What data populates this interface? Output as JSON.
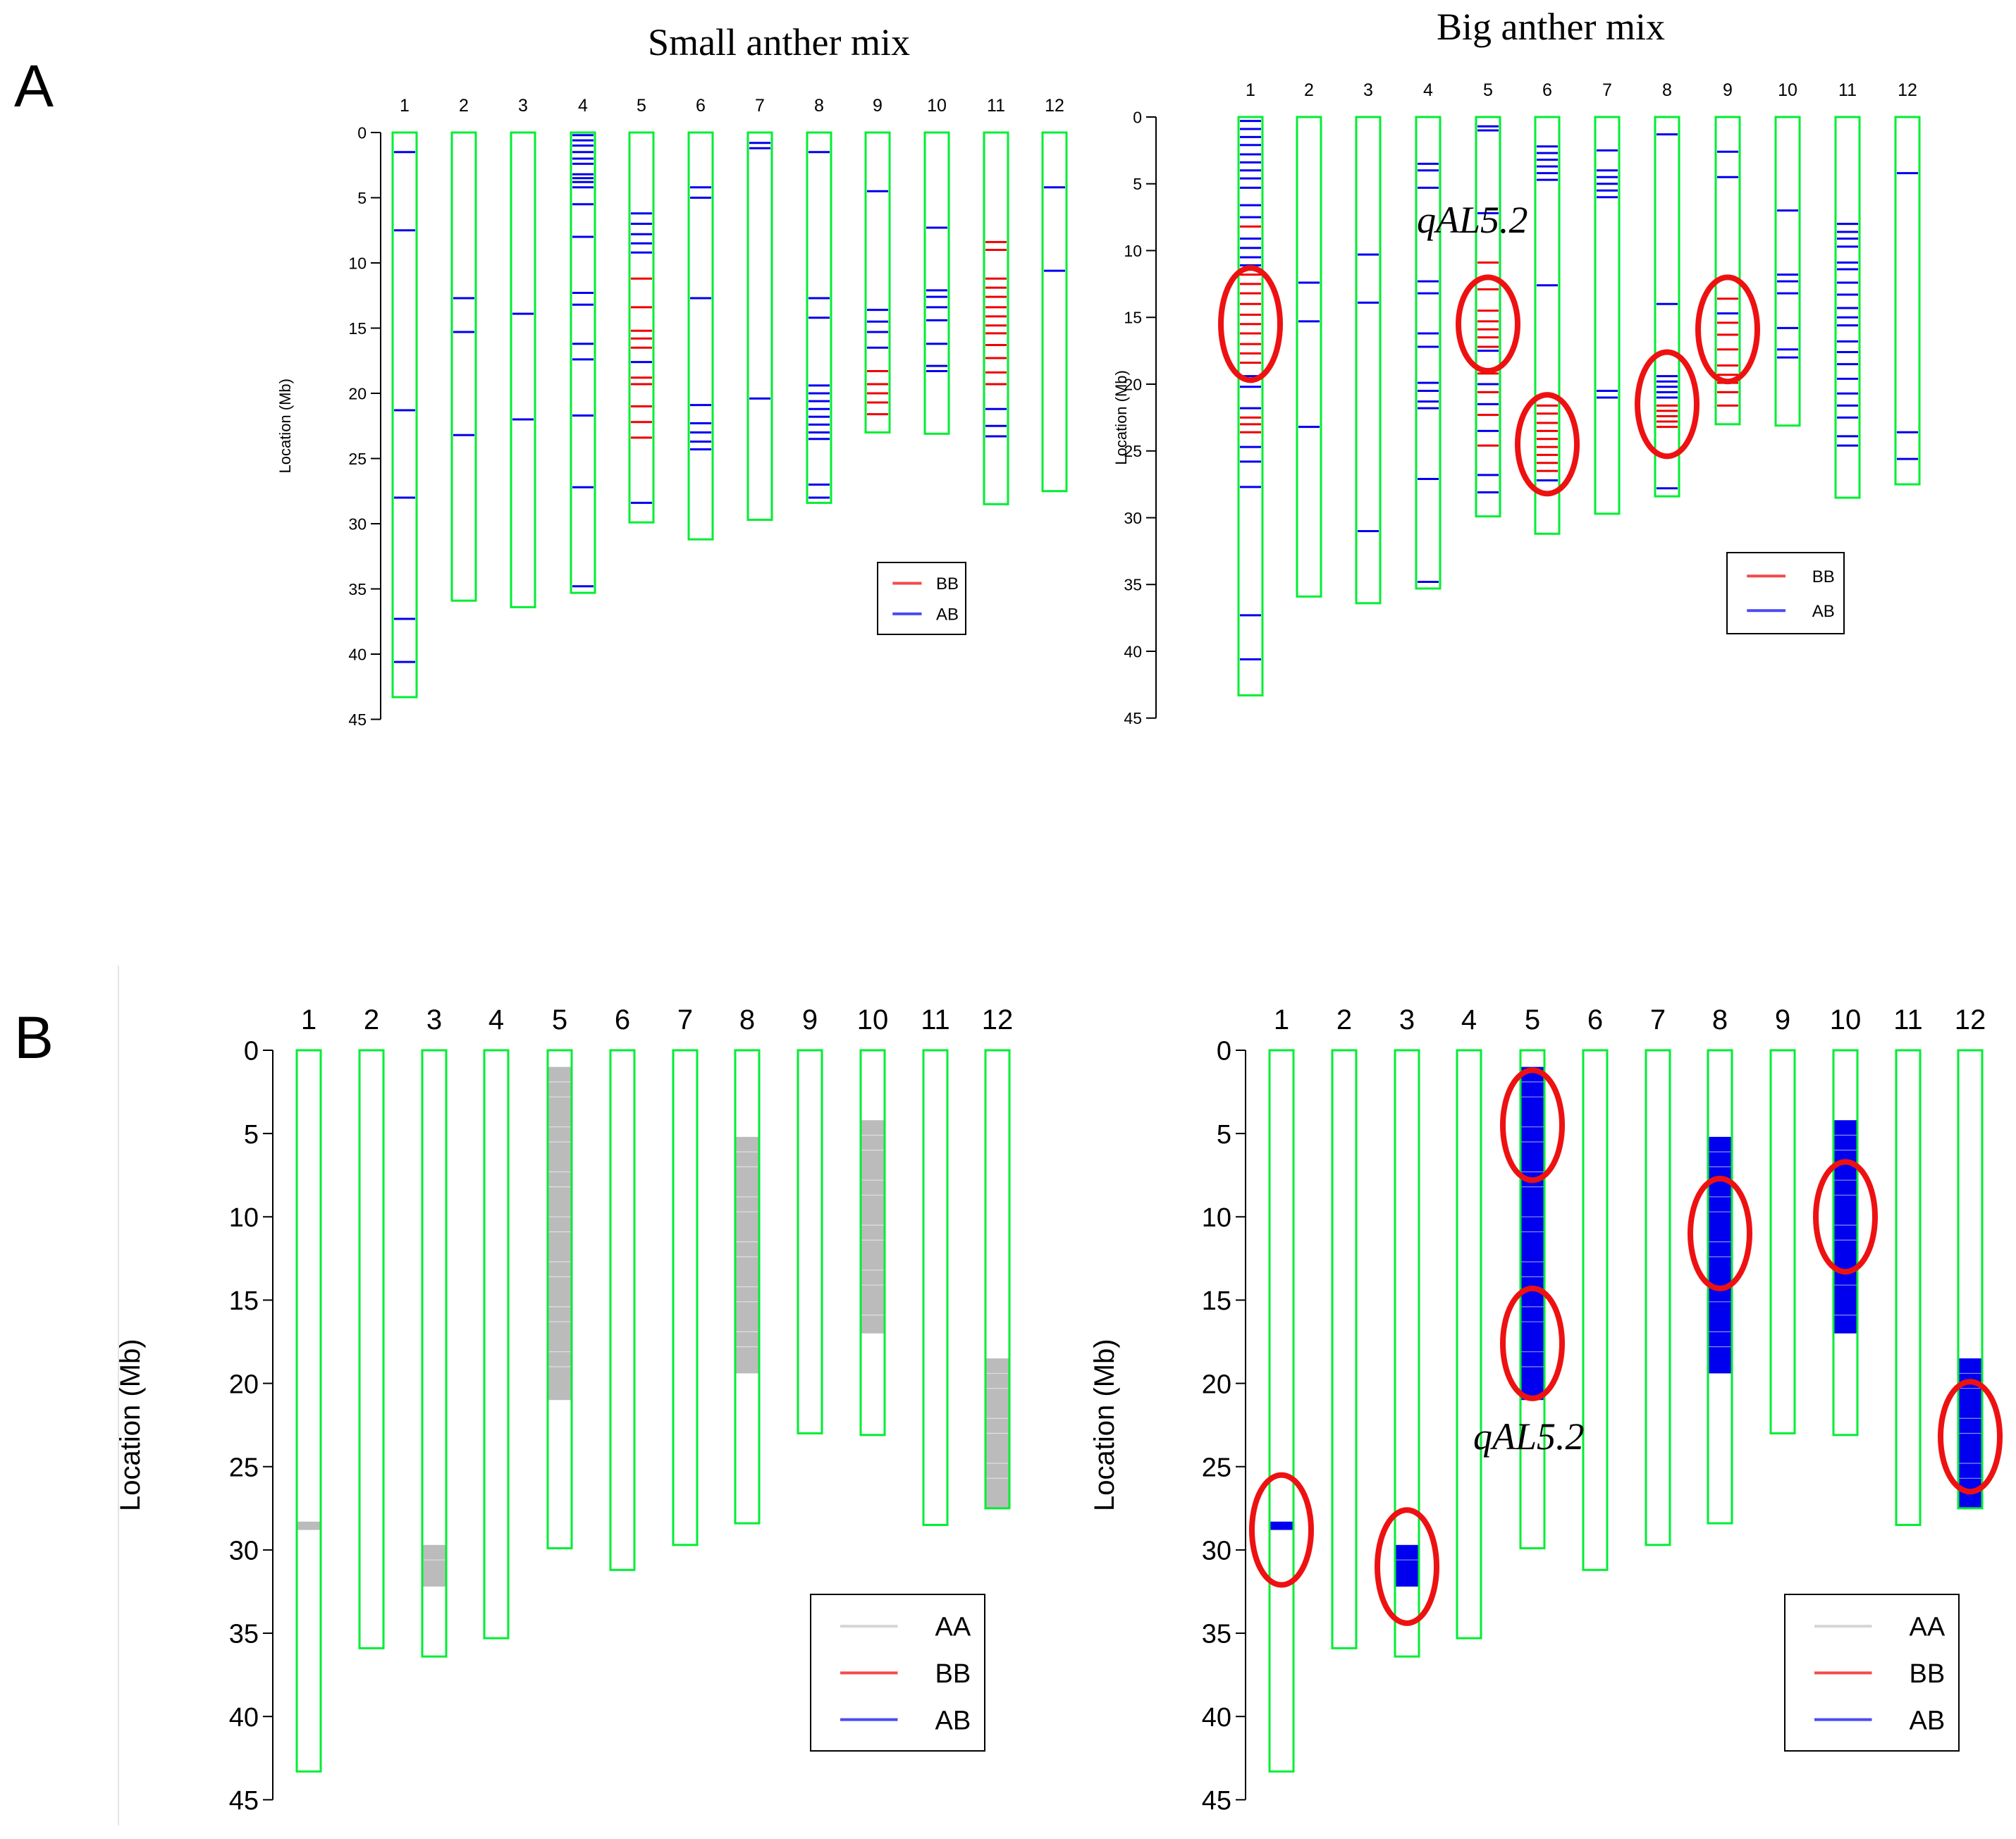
{
  "figure": {
    "panel_a_label": "A",
    "panel_b_label": "B"
  },
  "colors": {
    "chromosome": "#00ee33",
    "BB": "#ee0000",
    "AB": "#0000ee",
    "AA": "#bbbbbb",
    "circle": "#ee1111",
    "axis": "#000000"
  },
  "chart_data": [
    {
      "type": "chromosome-map",
      "title": "Small anther mix",
      "ylabel": "Location (Mb)",
      "ylim": [
        0,
        45
      ],
      "yticks": [
        0,
        5,
        10,
        15,
        20,
        25,
        30,
        35,
        40,
        45
      ],
      "chromosomes": [
        "1",
        "2",
        "3",
        "4",
        "5",
        "6",
        "7",
        "8",
        "9",
        "10",
        "11",
        "12"
      ],
      "lengths": [
        43.3,
        35.9,
        36.4,
        35.3,
        29.9,
        31.2,
        29.7,
        28.4,
        23.0,
        23.1,
        28.5,
        27.5
      ],
      "legend": [
        "BB",
        "AB"
      ],
      "markers": [
        {
          "chr": 1,
          "type": "AB",
          "pos": [
            1.5,
            7.5,
            21.3,
            28,
            37.3,
            40.6
          ]
        },
        {
          "chr": 2,
          "type": "AB",
          "pos": [
            12.7,
            15.3,
            23.2
          ]
        },
        {
          "chr": 3,
          "type": "AB",
          "pos": [
            13.9,
            22
          ]
        },
        {
          "chr": 4,
          "type": "AB",
          "pos": [
            0.2,
            0.6,
            1.0,
            1.5,
            2.0,
            2.4,
            3.2,
            3.5,
            3.8,
            4.2,
            5.5,
            8.0,
            12.3,
            13.2,
            16.2,
            17.4,
            21.7,
            27.2,
            34.8
          ]
        },
        {
          "chr": 5,
          "type": "BB",
          "pos": [
            11.2,
            13.4,
            15.2,
            15.8,
            16.5,
            18.8,
            19.3,
            21,
            22.2,
            23.4
          ]
        },
        {
          "chr": 5,
          "type": "AB",
          "pos": [
            6.2,
            7.0,
            7.8,
            8.5,
            9.2,
            17.6,
            28.4
          ]
        },
        {
          "chr": 6,
          "type": "AB",
          "pos": [
            4.2,
            5.0,
            12.7,
            20.9,
            22.3,
            23.0,
            23.7,
            24.3
          ]
        },
        {
          "chr": 7,
          "type": "AB",
          "pos": [
            0.8,
            1.2,
            20.4
          ]
        },
        {
          "chr": 8,
          "type": "AB",
          "pos": [
            1.5,
            12.7,
            14.2,
            19.4,
            20,
            20.6,
            21.2,
            21.8,
            22.4,
            23.0,
            23.5,
            27.0,
            28.0
          ]
        },
        {
          "chr": 9,
          "type": "AB",
          "pos": [
            4.5,
            13.6,
            14.5,
            15.3,
            16.5
          ]
        },
        {
          "chr": 9,
          "type": "BB",
          "pos": [
            18.3,
            19.3,
            20.0,
            20.7,
            21.6
          ]
        },
        {
          "chr": 10,
          "type": "AB",
          "pos": [
            7.3,
            12.1,
            12.6,
            13.4,
            14.4,
            16.2,
            17.9,
            18.3
          ]
        },
        {
          "chr": 11,
          "type": "BB",
          "pos": [
            8.4,
            9.0,
            11.2,
            11.9,
            12.6,
            13.4,
            14.1,
            14.8,
            15.4,
            16.3,
            17.3,
            18.4,
            19.3
          ]
        },
        {
          "chr": 11,
          "type": "AB",
          "pos": [
            21.2,
            22.5,
            23.3
          ]
        },
        {
          "chr": 12,
          "type": "AB",
          "pos": [
            4.2,
            10.6
          ]
        }
      ]
    },
    {
      "type": "chromosome-map",
      "title": "Big anther mix",
      "ylabel": "Location (Mb)",
      "ylim": [
        0,
        45
      ],
      "yticks": [
        0,
        5,
        10,
        15,
        20,
        25,
        30,
        35,
        40,
        45
      ],
      "chromosomes": [
        "1",
        "2",
        "3",
        "4",
        "5",
        "6",
        "7",
        "8",
        "9",
        "10",
        "11",
        "12"
      ],
      "lengths": [
        43.3,
        35.9,
        36.4,
        35.3,
        29.9,
        31.2,
        29.7,
        28.4,
        23.0,
        23.1,
        28.5,
        27.5
      ],
      "legend": [
        "BB",
        "AB"
      ],
      "annotation": "qAL5.2",
      "highlight_circles": [
        {
          "chr": 1,
          "center": 15.5,
          "rx": 1.0,
          "ry": 4.2
        },
        {
          "chr": 5,
          "center": 15.5,
          "rx": 1.0,
          "ry": 3.5
        },
        {
          "chr": 6,
          "center": 24.5,
          "rx": 1.0,
          "ry": 3.7
        },
        {
          "chr": 8,
          "center": 21.5,
          "rx": 1.0,
          "ry": 3.9
        },
        {
          "chr": 9,
          "center": 15.9,
          "rx": 1.0,
          "ry": 3.9
        }
      ],
      "markers": [
        {
          "chr": 1,
          "type": "AB",
          "pos": [
            0.3,
            0.9,
            1.5,
            2.1,
            2.8,
            3.4,
            4.0,
            4.6,
            5.3,
            6.6,
            7.5,
            9.1,
            9.8,
            10.5,
            11.1,
            19.4,
            20.2,
            21.8,
            24.7,
            25.8,
            27.7,
            37.3,
            40.6
          ]
        },
        {
          "chr": 1,
          "type": "BB",
          "pos": [
            8.2,
            11.8,
            12.5,
            13.2,
            14.0,
            14.8,
            15.5,
            16.2,
            17.0,
            17.7,
            18.4,
            22.5,
            23.0,
            23.6
          ]
        },
        {
          "chr": 2,
          "type": "AB",
          "pos": [
            12.4,
            15.3,
            23.2
          ]
        },
        {
          "chr": 3,
          "type": "AB",
          "pos": [
            10.3,
            13.9,
            31.0
          ]
        },
        {
          "chr": 4,
          "type": "AB",
          "pos": [
            3.5,
            4.0,
            5.3,
            12.3,
            13.2,
            16.2,
            17.2,
            19.9,
            20.5,
            21.3,
            21.8,
            27.1,
            34.8
          ]
        },
        {
          "chr": 5,
          "type": "AB",
          "pos": [
            0.7,
            1.0,
            7.2,
            17.5,
            20.0,
            21.5,
            23.5,
            26.8,
            28.1
          ]
        },
        {
          "chr": 5,
          "type": "BB",
          "pos": [
            10.9,
            12.9,
            14.5,
            15.3,
            15.9,
            16.5,
            17.2,
            19.2,
            20.6,
            22.3,
            24.6
          ]
        },
        {
          "chr": 6,
          "type": "AB",
          "pos": [
            2.2,
            2.7,
            3.2,
            3.7,
            4.2,
            4.7,
            12.6,
            27.2
          ]
        },
        {
          "chr": 6,
          "type": "BB",
          "pos": [
            21.6,
            22.2,
            22.9,
            23.5,
            24.1,
            24.7,
            25.3,
            25.9,
            26.5
          ]
        },
        {
          "chr": 7,
          "type": "AB",
          "pos": [
            2.5,
            4.0,
            4.5,
            5.0,
            5.5,
            6.0,
            20.5,
            21.0
          ]
        },
        {
          "chr": 8,
          "type": "AB",
          "pos": [
            1.3,
            14.0,
            19.4,
            19.8,
            20.2,
            20.6,
            21.0,
            27.8
          ]
        },
        {
          "chr": 8,
          "type": "BB",
          "pos": [
            21.6,
            22.0,
            22.4,
            22.8,
            23.2
          ]
        },
        {
          "chr": 9,
          "type": "AB",
          "pos": [
            2.6,
            4.5,
            14.7
          ]
        },
        {
          "chr": 9,
          "type": "BB",
          "pos": [
            13.6,
            15.4,
            16.3,
            17.4,
            18.6,
            19.3,
            19.9,
            20.6,
            21.6
          ]
        },
        {
          "chr": 10,
          "type": "AB",
          "pos": [
            7.0,
            11.8,
            12.3,
            13.2,
            15.8,
            17.4,
            18.0
          ]
        },
        {
          "chr": 11,
          "type": "AB",
          "pos": [
            8.0,
            8.6,
            9.1,
            9.7,
            10.9,
            11.4,
            12.4,
            13.3,
            14.3,
            15.0,
            15.6,
            16.8,
            17.6,
            18.5,
            19.6,
            20.7,
            21.6,
            22.5,
            23.9,
            24.6
          ]
        },
        {
          "chr": 12,
          "type": "AB",
          "pos": [
            4.2,
            23.6,
            25.6
          ]
        }
      ]
    },
    {
      "type": "chromosome-map",
      "title": "",
      "ylabel": "Location (Mb)",
      "ylim": [
        0,
        45
      ],
      "yticks": [
        0,
        5,
        10,
        15,
        20,
        25,
        30,
        35,
        40,
        45
      ],
      "chromosomes": [
        "1",
        "2",
        "3",
        "4",
        "5",
        "6",
        "7",
        "8",
        "9",
        "10",
        "11",
        "12"
      ],
      "lengths": [
        43.3,
        35.9,
        36.4,
        35.3,
        29.9,
        31.2,
        29.7,
        28.4,
        23.0,
        23.1,
        28.5,
        27.5
      ],
      "legend": [
        "AA",
        "BB",
        "AB"
      ],
      "blocks": [
        {
          "chr": 1,
          "type": "AA",
          "start": 28.3,
          "end": 28.8
        },
        {
          "chr": 3,
          "type": "AA",
          "start": 29.7,
          "end": 32.2
        },
        {
          "chr": 5,
          "type": "AA",
          "start": 1.0,
          "end": 21.0
        },
        {
          "chr": 8,
          "type": "AA",
          "start": 5.2,
          "end": 19.4
        },
        {
          "chr": 10,
          "type": "AA",
          "start": 4.2,
          "end": 17.0
        },
        {
          "chr": 12,
          "type": "AA",
          "start": 18.5,
          "end": 27.5
        }
      ]
    },
    {
      "type": "chromosome-map",
      "title": "",
      "ylabel": "Location (Mb)",
      "ylim": [
        0,
        45
      ],
      "yticks": [
        0,
        5,
        10,
        15,
        20,
        25,
        30,
        35,
        40,
        45
      ],
      "chromosomes": [
        "1",
        "2",
        "3",
        "4",
        "5",
        "6",
        "7",
        "8",
        "9",
        "10",
        "11",
        "12"
      ],
      "lengths": [
        43.3,
        35.9,
        36.4,
        35.3,
        29.9,
        31.2,
        29.7,
        28.4,
        23.0,
        23.1,
        28.5,
        27.5
      ],
      "legend": [
        "AA",
        "BB",
        "AB"
      ],
      "annotation": "qAL5.2",
      "blocks": [
        {
          "chr": 1,
          "type": "AB",
          "start": 28.3,
          "end": 28.8
        },
        {
          "chr": 3,
          "type": "AB",
          "start": 29.7,
          "end": 32.2
        },
        {
          "chr": 5,
          "type": "AB",
          "start": 1.0,
          "end": 21.0
        },
        {
          "chr": 8,
          "type": "AB",
          "start": 5.2,
          "end": 19.4
        },
        {
          "chr": 10,
          "type": "AB",
          "start": 4.2,
          "end": 17.0
        },
        {
          "chr": 12,
          "type": "AB",
          "start": 18.5,
          "end": 27.5
        }
      ],
      "highlight_circles": [
        {
          "chr": 1,
          "center": 28.8,
          "rx": 1.0,
          "ry": 3.3
        },
        {
          "chr": 3,
          "center": 31.0,
          "rx": 1.0,
          "ry": 3.4
        },
        {
          "chr": 5,
          "center": 4.5,
          "rx": 1.0,
          "ry": 3.3
        },
        {
          "chr": 5,
          "center": 17.6,
          "rx": 1.0,
          "ry": 3.3
        },
        {
          "chr": 8,
          "center": 11.0,
          "rx": 1.0,
          "ry": 3.3
        },
        {
          "chr": 10,
          "center": 10.0,
          "rx": 1.0,
          "ry": 3.3
        },
        {
          "chr": 12,
          "center": 23.2,
          "rx": 1.0,
          "ry": 3.3
        }
      ]
    }
  ]
}
